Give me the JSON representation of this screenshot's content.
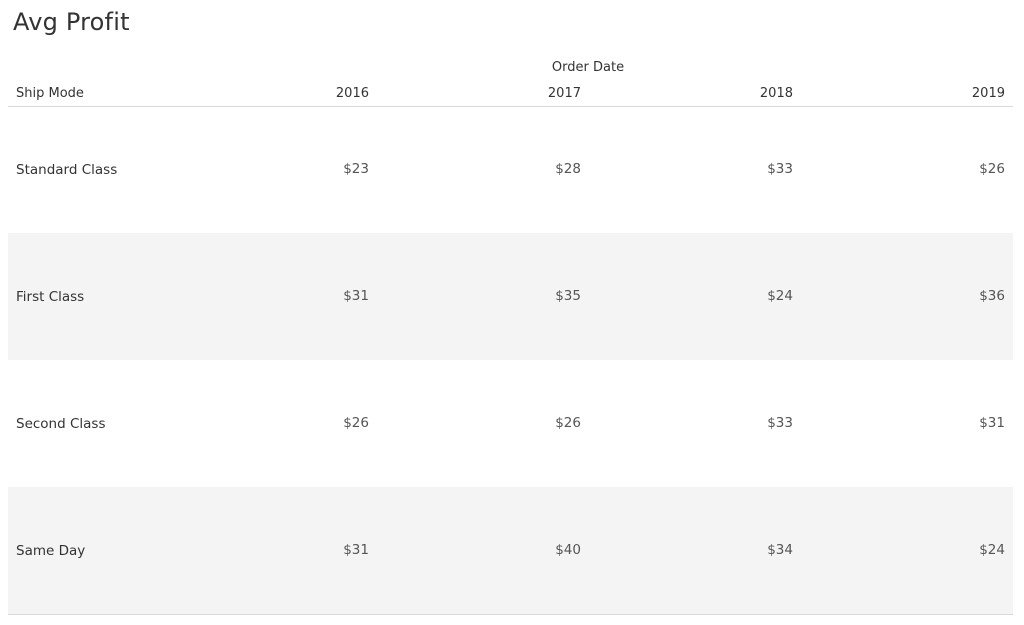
{
  "title": "Avg Profit",
  "chart_data": {
    "type": "table",
    "title": "Avg Profit",
    "column_group_label": "Order Date",
    "row_header_label": "Ship Mode",
    "columns": [
      "2016",
      "2017",
      "2018",
      "2019"
    ],
    "rows": [
      {
        "label": "Standard Class",
        "values": [
          "$23",
          "$28",
          "$33",
          "$26"
        ]
      },
      {
        "label": "First Class",
        "values": [
          "$31",
          "$35",
          "$24",
          "$36"
        ]
      },
      {
        "label": "Second Class",
        "values": [
          "$26",
          "$26",
          "$33",
          "$31"
        ]
      },
      {
        "label": "Same Day",
        "values": [
          "$31",
          "$40",
          "$34",
          "$24"
        ]
      }
    ],
    "banding_color": "#f4f4f4"
  }
}
